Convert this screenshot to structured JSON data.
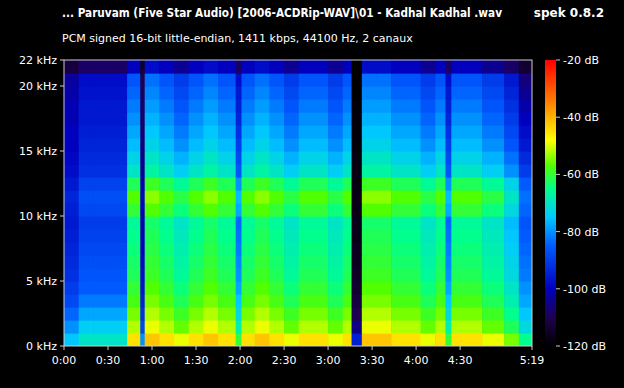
{
  "chart_data": {
    "type": "heatmap",
    "title": "... Paruvam (Five Star Audio) [2006-ACDRip-WAV]\\01 - Kadhal Kadhal .wav",
    "subtitle": "PCM signed 16-bit little-endian, 1411 kbps, 44100 Hz, 2 canaux",
    "annotation": "spek 0.8.2",
    "xlim": [
      0,
      319
    ],
    "xticks": [
      {
        "value": 0,
        "label": "0:00"
      },
      {
        "value": 30,
        "label": "0:30"
      },
      {
        "value": 60,
        "label": "1:00"
      },
      {
        "value": 90,
        "label": "1:30"
      },
      {
        "value": 120,
        "label": "2:00"
      },
      {
        "value": 150,
        "label": "2:30"
      },
      {
        "value": 180,
        "label": "3:00"
      },
      {
        "value": 210,
        "label": "3:30"
      },
      {
        "value": 240,
        "label": "4:00"
      },
      {
        "value": 270,
        "label": "4:30"
      },
      {
        "value": 319,
        "label": "5:19"
      }
    ],
    "ylim": [
      0,
      22
    ],
    "yticks": [
      {
        "value": 0,
        "label": "0 kHz"
      },
      {
        "value": 5,
        "label": "5 kHz"
      },
      {
        "value": 10,
        "label": "10 kHz"
      },
      {
        "value": 15,
        "label": "15 kHz"
      },
      {
        "value": 20,
        "label": "20 kHz"
      },
      {
        "value": 22,
        "label": "22 kHz"
      }
    ],
    "grid": false,
    "color_range": [
      -120,
      -20
    ],
    "color_ticks": [
      {
        "value": -20,
        "label": "-20 dB"
      },
      {
        "value": -40,
        "label": "-40 dB"
      },
      {
        "value": -60,
        "label": "-60 dB"
      },
      {
        "value": -80,
        "label": "-80 dB"
      },
      {
        "value": -100,
        "label": "-100 dB"
      },
      {
        "value": -120,
        "label": "-120 dB"
      }
    ],
    "x_bins": [
      0,
      10,
      20,
      30,
      43,
      52,
      55,
      65,
      75,
      85,
      95,
      105,
      117,
      121,
      130,
      140,
      150,
      160,
      170,
      180,
      190,
      196,
      203,
      213,
      223,
      233,
      243,
      253,
      260,
      264,
      275,
      285,
      300,
      310,
      319
    ],
    "y_bins": [
      0,
      1,
      2,
      3,
      4,
      5,
      6,
      7,
      8,
      9,
      10,
      11,
      12,
      13,
      14,
      15,
      16,
      17,
      18,
      19,
      20,
      21,
      22
    ],
    "cells": [
      [
        -75,
        -70,
        -70,
        -70,
        -45,
        -80,
        -42,
        -45,
        -49,
        -45,
        -42,
        -45,
        -60,
        -45,
        -42,
        -45,
        -49,
        -45,
        -45,
        -49,
        -45,
        -95,
        -42,
        -42,
        -45,
        -45,
        -49,
        -45,
        -60,
        -45,
        -45,
        -49,
        -55,
        -65
      ],
      [
        -80,
        -74,
        -74,
        -74,
        -52,
        -88,
        -49,
        -52,
        -56,
        -52,
        -49,
        -52,
        -68,
        -52,
        -49,
        -52,
        -56,
        -52,
        -52,
        -56,
        -52,
        -105,
        -49,
        -49,
        -52,
        -52,
        -56,
        -52,
        -68,
        -52,
        -52,
        -56,
        -62,
        -72
      ],
      [
        -84,
        -78,
        -78,
        -78,
        -55,
        -92,
        -52,
        -55,
        -59,
        -55,
        -52,
        -55,
        -72,
        -55,
        -52,
        -55,
        -59,
        -55,
        -55,
        -59,
        -55,
        -110,
        -52,
        -52,
        -55,
        -55,
        -59,
        -55,
        -72,
        -55,
        -55,
        -59,
        -65,
        -75
      ],
      [
        -88,
        -82,
        -82,
        -82,
        -58,
        -95,
        -55,
        -58,
        -62,
        -58,
        -55,
        -58,
        -75,
        -58,
        -55,
        -58,
        -62,
        -58,
        -58,
        -62,
        -58,
        -112,
        -55,
        -55,
        -58,
        -58,
        -62,
        -58,
        -75,
        -58,
        -58,
        -62,
        -68,
        -78
      ],
      [
        -90,
        -85,
        -85,
        -85,
        -60,
        -97,
        -57,
        -60,
        -64,
        -60,
        -57,
        -60,
        -78,
        -60,
        -57,
        -60,
        -64,
        -60,
        -60,
        -64,
        -60,
        -114,
        -57,
        -57,
        -60,
        -60,
        -64,
        -60,
        -78,
        -60,
        -60,
        -64,
        -70,
        -80
      ],
      [
        -92,
        -86,
        -86,
        -86,
        -62,
        -98,
        -59,
        -62,
        -66,
        -62,
        -59,
        -62,
        -80,
        -62,
        -59,
        -62,
        -66,
        -62,
        -62,
        -66,
        -62,
        -115,
        -59,
        -59,
        -62,
        -62,
        -66,
        -62,
        -80,
        -62,
        -62,
        -66,
        -72,
        -82
      ],
      [
        -93,
        -87,
        -87,
        -87,
        -63,
        -99,
        -60,
        -63,
        -67,
        -63,
        -60,
        -63,
        -81,
        -63,
        -60,
        -63,
        -67,
        -63,
        -63,
        -67,
        -63,
        -116,
        -60,
        -60,
        -63,
        -63,
        -67,
        -63,
        -81,
        -63,
        -63,
        -67,
        -73,
        -83
      ],
      [
        -94,
        -88,
        -88,
        -88,
        -64,
        -100,
        -61,
        -64,
        -68,
        -64,
        -61,
        -64,
        -82,
        -64,
        -61,
        -64,
        -68,
        -64,
        -64,
        -68,
        -64,
        -116,
        -61,
        -61,
        -64,
        -64,
        -68,
        -64,
        -82,
        -64,
        -64,
        -68,
        -74,
        -84
      ],
      [
        -95,
        -89,
        -89,
        -89,
        -65,
        -101,
        -62,
        -65,
        -69,
        -65,
        -62,
        -65,
        -83,
        -65,
        -62,
        -65,
        -69,
        -65,
        -65,
        -69,
        -65,
        -117,
        -62,
        -62,
        -65,
        -65,
        -69,
        -65,
        -83,
        -65,
        -65,
        -69,
        -75,
        -85
      ],
      [
        -96,
        -90,
        -90,
        -90,
        -66,
        -102,
        -63,
        -66,
        -70,
        -66,
        -63,
        -66,
        -84,
        -66,
        -63,
        -66,
        -70,
        -66,
        -66,
        -70,
        -66,
        -117,
        -63,
        -63,
        -66,
        -66,
        -70,
        -66,
        -84,
        -66,
        -66,
        -70,
        -76,
        -86
      ],
      [
        -95,
        -88,
        -88,
        -88,
        -60,
        -100,
        -57,
        -60,
        -64,
        -60,
        -57,
        -60,
        -78,
        -60,
        -57,
        -60,
        -64,
        -60,
        -60,
        -64,
        -60,
        -117,
        -57,
        -57,
        -60,
        -60,
        -64,
        -60,
        -78,
        -60,
        -60,
        -64,
        -72,
        -84
      ],
      [
        -94,
        -87,
        -87,
        -87,
        -57,
        -99,
        -54,
        -57,
        -61,
        -57,
        -54,
        -57,
        -76,
        -57,
        -54,
        -57,
        -61,
        -57,
        -57,
        -61,
        -57,
        -117,
        -54,
        -54,
        -57,
        -57,
        -61,
        -57,
        -76,
        -57,
        -57,
        -61,
        -70,
        -83
      ],
      [
        -96,
        -89,
        -89,
        -89,
        -62,
        -101,
        -59,
        -62,
        -66,
        -62,
        -59,
        -62,
        -80,
        -62,
        -59,
        -62,
        -66,
        -62,
        -62,
        -66,
        -62,
        -118,
        -59,
        -59,
        -62,
        -62,
        -66,
        -62,
        -80,
        -62,
        -62,
        -66,
        -73,
        -85
      ],
      [
        -98,
        -92,
        -92,
        -92,
        -70,
        -104,
        -67,
        -70,
        -74,
        -70,
        -67,
        -70,
        -86,
        -70,
        -67,
        -70,
        -74,
        -70,
        -70,
        -74,
        -70,
        -118,
        -67,
        -67,
        -70,
        -70,
        -74,
        -70,
        -86,
        -70,
        -70,
        -74,
        -80,
        -90
      ],
      [
        -99,
        -93,
        -93,
        -93,
        -73,
        -105,
        -70,
        -73,
        -77,
        -73,
        -70,
        -73,
        -88,
        -73,
        -70,
        -73,
        -77,
        -73,
        -73,
        -77,
        -73,
        -118,
        -70,
        -70,
        -73,
        -73,
        -77,
        -73,
        -88,
        -73,
        -73,
        -77,
        -83,
        -93
      ],
      [
        -100,
        -94,
        -94,
        -94,
        -76,
        -106,
        -73,
        -76,
        -80,
        -76,
        -73,
        -76,
        -90,
        -76,
        -73,
        -76,
        -80,
        -76,
        -76,
        -80,
        -76,
        -119,
        -73,
        -73,
        -76,
        -76,
        -80,
        -76,
        -90,
        -76,
        -76,
        -80,
        -86,
        -96
      ],
      [
        -100,
        -95,
        -95,
        -95,
        -78,
        -107,
        -75,
        -78,
        -82,
        -78,
        -75,
        -78,
        -92,
        -78,
        -75,
        -78,
        -82,
        -78,
        -78,
        -82,
        -78,
        -119,
        -75,
        -75,
        -78,
        -78,
        -82,
        -78,
        -92,
        -78,
        -78,
        -82,
        -88,
        -98
      ],
      [
        -101,
        -96,
        -96,
        -96,
        -80,
        -108,
        -77,
        -80,
        -84,
        -80,
        -77,
        -80,
        -94,
        -80,
        -77,
        -80,
        -84,
        -80,
        -80,
        -84,
        -80,
        -119,
        -77,
        -77,
        -80,
        -80,
        -84,
        -80,
        -94,
        -80,
        -80,
        -84,
        -90,
        -100
      ],
      [
        -101,
        -96,
        -96,
        -96,
        -82,
        -108,
        -79,
        -82,
        -86,
        -82,
        -79,
        -82,
        -95,
        -82,
        -79,
        -82,
        -86,
        -82,
        -82,
        -86,
        -82,
        -119,
        -79,
        -79,
        -82,
        -82,
        -86,
        -82,
        -95,
        -82,
        -82,
        -86,
        -92,
        -102
      ],
      [
        -102,
        -97,
        -97,
        -97,
        -84,
        -109,
        -81,
        -84,
        -88,
        -84,
        -81,
        -84,
        -96,
        -84,
        -81,
        -84,
        -88,
        -84,
        -84,
        -88,
        -84,
        -120,
        -81,
        -81,
        -84,
        -84,
        -88,
        -84,
        -96,
        -84,
        -84,
        -88,
        -94,
        -104
      ],
      [
        -103,
        -98,
        -98,
        -98,
        -86,
        -110,
        -83,
        -86,
        -90,
        -86,
        -83,
        -86,
        -98,
        -86,
        -83,
        -86,
        -90,
        -86,
        -86,
        -90,
        -86,
        -120,
        -83,
        -83,
        -86,
        -86,
        -90,
        -86,
        -98,
        -86,
        -86,
        -90,
        -96,
        -106
      ],
      [
        -112,
        -108,
        -108,
        -108,
        -100,
        -115,
        -98,
        -100,
        -104,
        -100,
        -98,
        -100,
        -108,
        -100,
        -98,
        -100,
        -104,
        -100,
        -100,
        -104,
        -100,
        -120,
        -98,
        -98,
        -100,
        -100,
        -104,
        -100,
        -108,
        -100,
        -100,
        -104,
        -108,
        -114
      ]
    ]
  }
}
